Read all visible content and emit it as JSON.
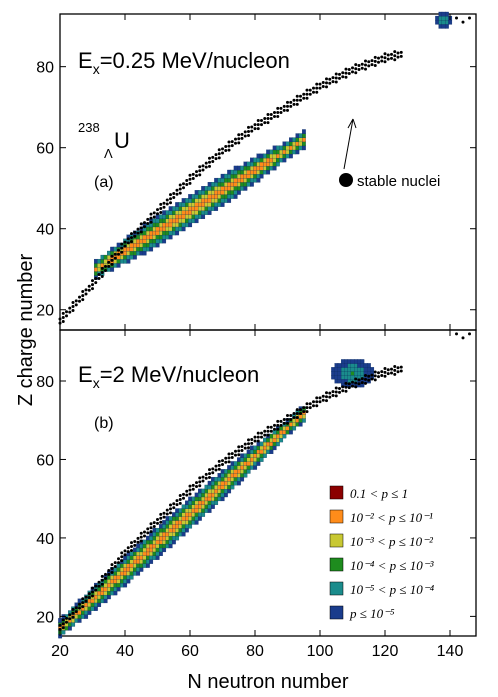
{
  "chart_data": [
    {
      "type": "heatmap",
      "panel_label": "(a)",
      "title_main": "E",
      "title_sub": "x",
      "title_rest": "=0.25 MeV/nucleon",
      "nucleus_mass": "238",
      "nucleus_sub": "Λ",
      "nucleus_symbol": "U",
      "annotation": "stable nuclei",
      "xlim": [
        20,
        148
      ],
      "ylim": [
        15,
        93
      ],
      "yticks": [
        20,
        40,
        60,
        80
      ],
      "band": {
        "n_start": 31,
        "n_end": 95,
        "z_at_start": 30,
        "z_slope": 0.5,
        "half_width": 3.5
      },
      "cluster": {
        "n_range": [
          136,
          140
        ],
        "z_range": [
          90,
          93
        ]
      }
    },
    {
      "type": "heatmap",
      "panel_label": "(b)",
      "title_main": "E",
      "title_sub": "x",
      "title_rest": "=2 MeV/nucleon",
      "xlabel": "N neutron number",
      "xlim": [
        20,
        148
      ],
      "ylim": [
        15,
        93
      ],
      "xticks": [
        20,
        40,
        60,
        80,
        100,
        120,
        140
      ],
      "yticks": [
        20,
        40,
        60,
        80
      ],
      "band": {
        "n_start": 20,
        "n_end": 95,
        "z_at_start": 17,
        "z_slope": 0.73,
        "half_width": 3.5
      },
      "cluster": {
        "n_range": [
          104,
          116
        ],
        "z_range": [
          79,
          85
        ]
      }
    }
  ],
  "ylabel": "Z charge number",
  "legend": {
    "items": [
      {
        "label": "0.1 < p ≤ 1",
        "color": "#8b0000"
      },
      {
        "label": "10⁻² < p ≤ 10⁻¹",
        "color": "#ff8c1a"
      },
      {
        "label": "10⁻³ < p ≤ 10⁻²",
        "color": "#c8c832"
      },
      {
        "label": "10⁻⁴ < p ≤ 10⁻³",
        "color": "#1e8c1e"
      },
      {
        "label": "10⁻⁵ < p ≤ 10⁻⁴",
        "color": "#1a8c8c"
      },
      {
        "label": "p ≤ 10⁻⁵",
        "color": "#1a3c8c"
      }
    ]
  },
  "stable_line": {
    "points": [
      [
        20,
        17
      ],
      [
        30,
        26
      ],
      [
        40,
        36
      ],
      [
        50,
        44
      ],
      [
        60,
        52
      ],
      [
        70,
        59
      ],
      [
        80,
        65
      ],
      [
        90,
        70
      ],
      [
        100,
        75
      ],
      [
        110,
        79
      ],
      [
        120,
        82
      ],
      [
        126,
        83
      ]
    ]
  },
  "stable_extra": [
    [
      142,
      92
    ],
    [
      144,
      91
    ],
    [
      146,
      92
    ]
  ]
}
